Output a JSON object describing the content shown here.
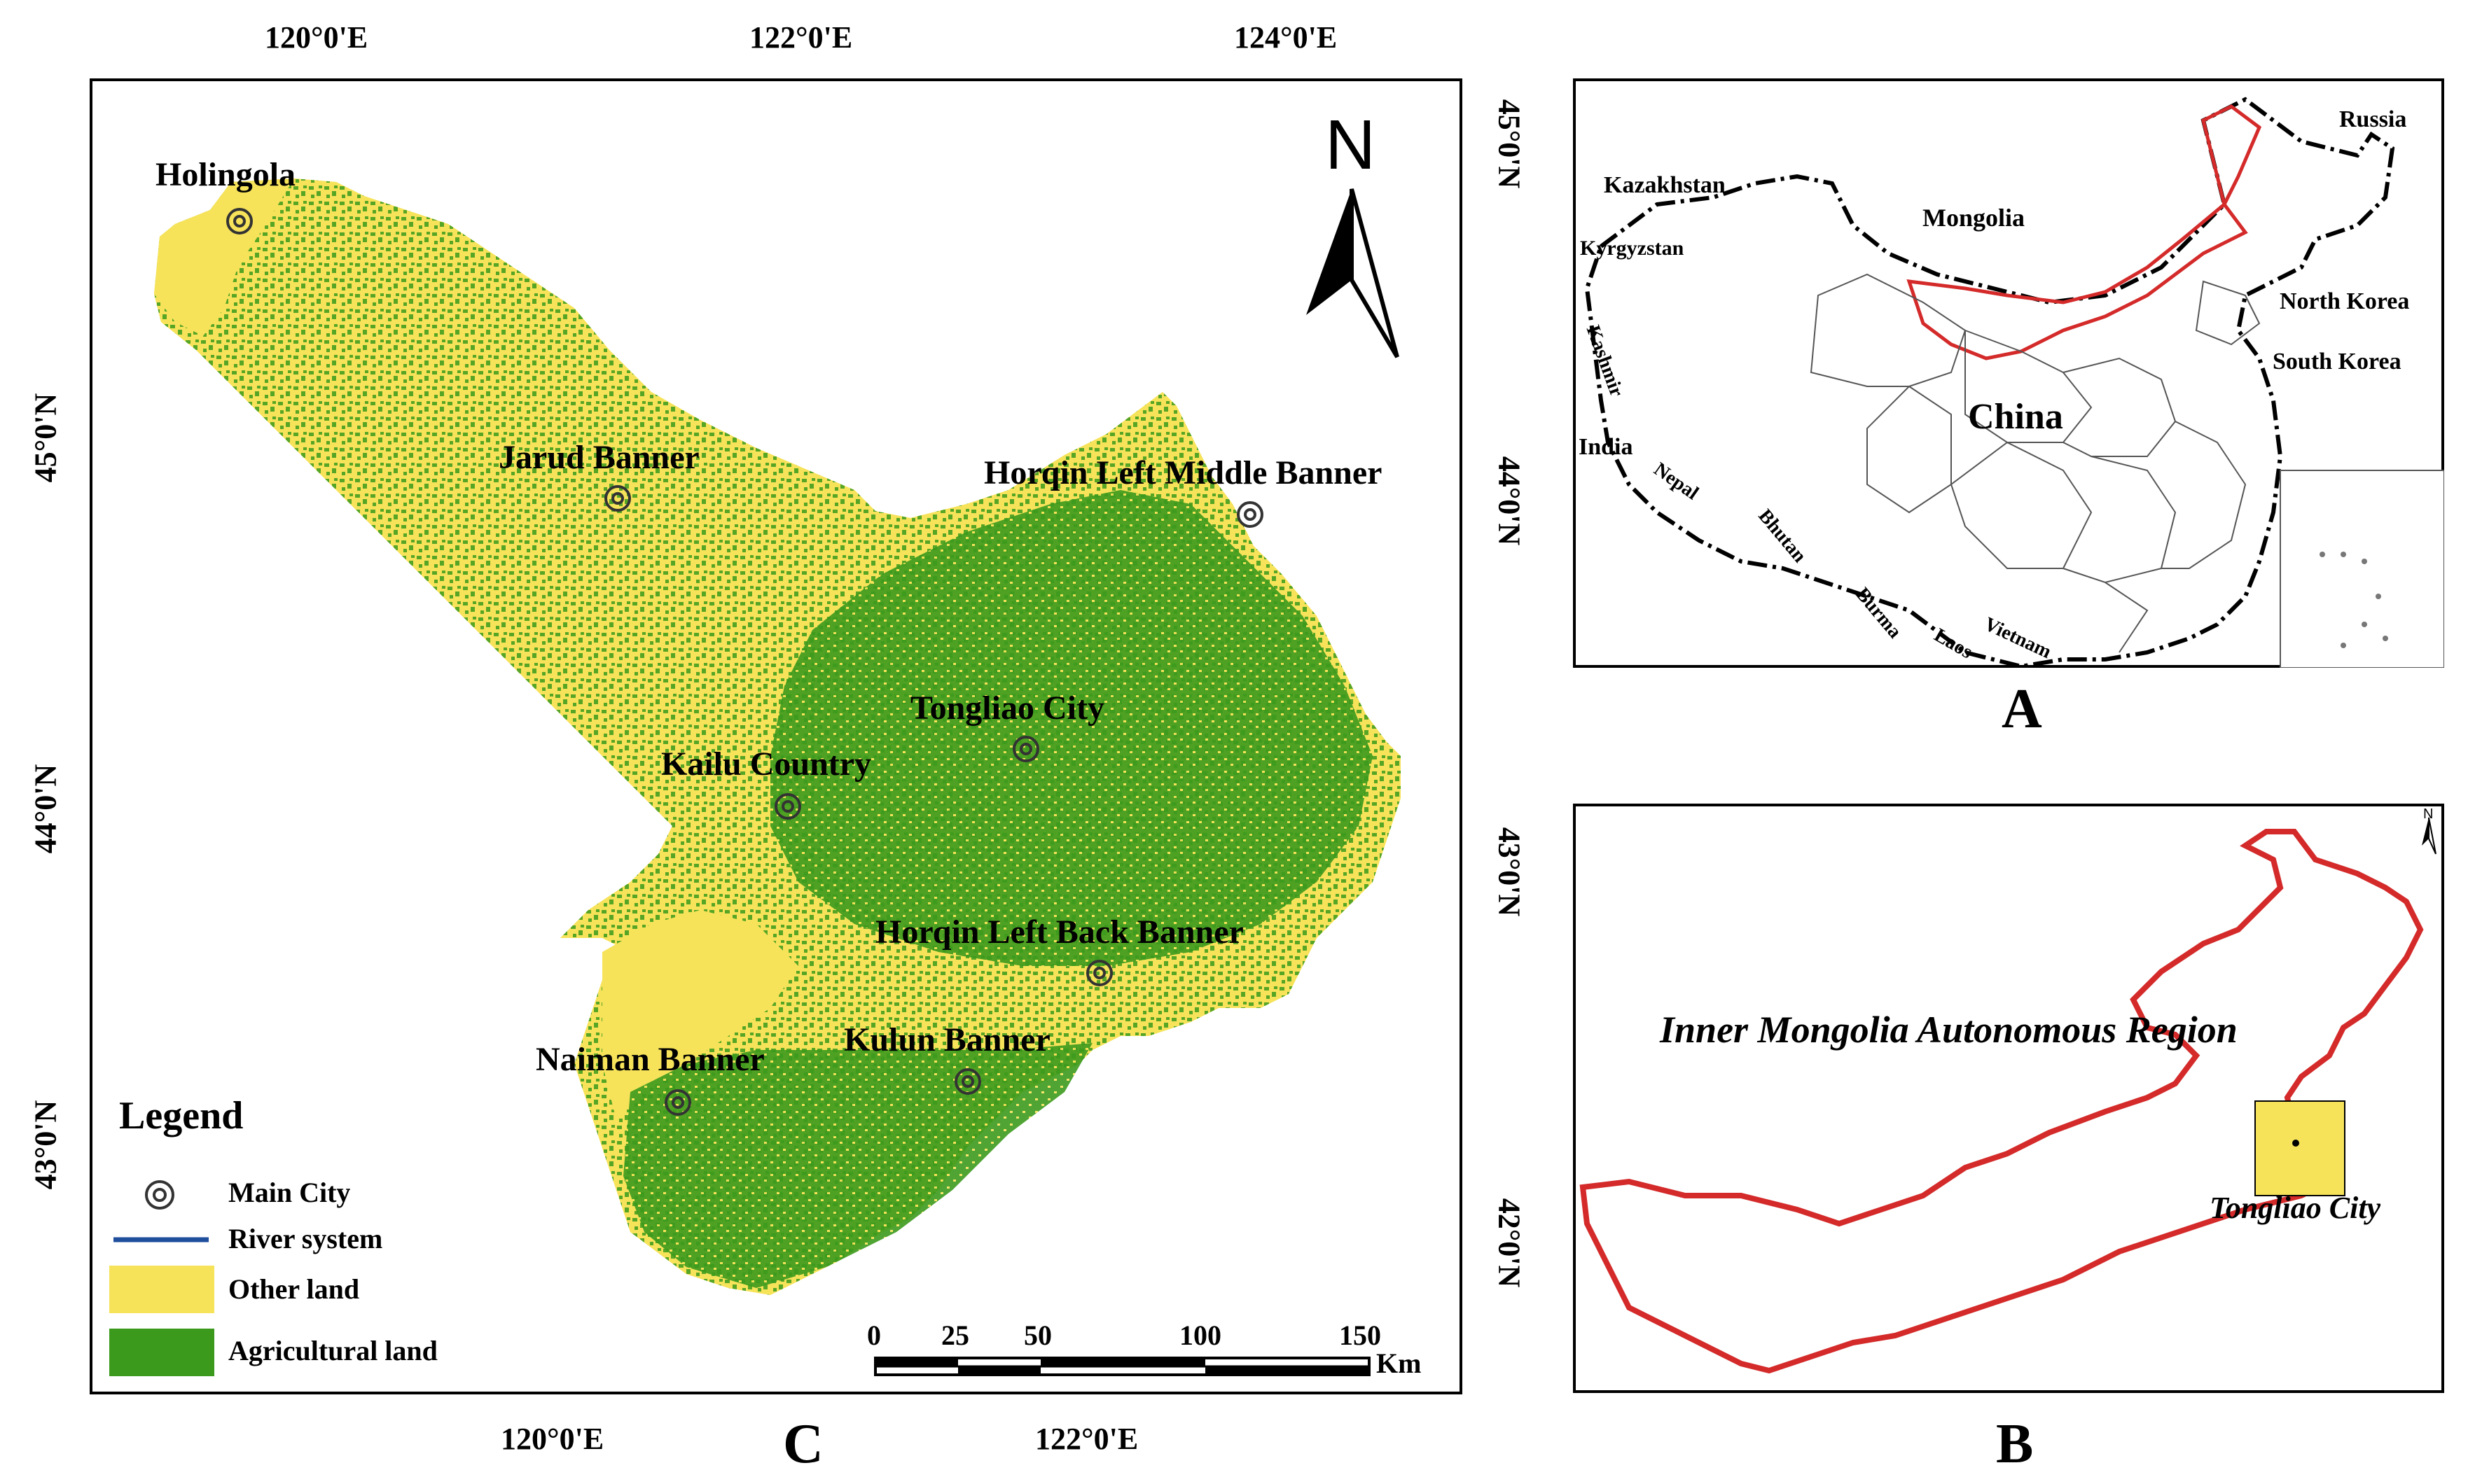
{
  "panel_c": {
    "letter": "C",
    "top_lon_ticks": [
      "120°0'E",
      "122°0'E",
      "124°0'E"
    ],
    "bottom_lon_ticks": [
      "120°0'E",
      "122°0'E"
    ],
    "left_lat_ticks": [
      "45°0'N",
      "44°0'N",
      "43°0'N"
    ],
    "right_lat_ticks": [
      "45°0'N",
      "44°0'N",
      "43°0'N",
      "42°0'N"
    ],
    "north_label": "N",
    "cities": [
      {
        "name": "Holingola"
      },
      {
        "name": "Jarud Banner"
      },
      {
        "name": "Horqin Left Middle Banner"
      },
      {
        "name": "Tongliao City"
      },
      {
        "name": "Kailu Country"
      },
      {
        "name": "Horqin Left Back Banner"
      },
      {
        "name": "Naiman Banner"
      },
      {
        "name": "Kulun Banner"
      }
    ],
    "legend": {
      "title": "Legend",
      "items": [
        {
          "label": "Main City"
        },
        {
          "label": "River system",
          "color": "#1f4e9c"
        },
        {
          "label": "Other land",
          "color": "#f6e35a"
        },
        {
          "label": "Agricultural land",
          "color": "#3b9a1c"
        }
      ]
    },
    "scale": {
      "ticks": [
        "0",
        "25",
        "50",
        "100",
        "150"
      ],
      "unit": "Km"
    }
  },
  "panel_a": {
    "letter": "A",
    "countries": [
      "Russia",
      "Kazakhstan",
      "Mongolia",
      "Kyrgyzstan",
      "North Korea",
      "South Korea",
      "China",
      "India",
      "Nepal",
      "Kashmir",
      "Bhutan",
      "Burma",
      "Laos",
      "Vietnam"
    ],
    "highlight_color": "#d42a2a"
  },
  "panel_b": {
    "letter": "B",
    "region_label": "Inner Mongolia Autonomous Region",
    "city_label": "Tongliao City",
    "north_label": "N",
    "outline_color": "#d42a2a",
    "box_color": "#f6e35a"
  }
}
